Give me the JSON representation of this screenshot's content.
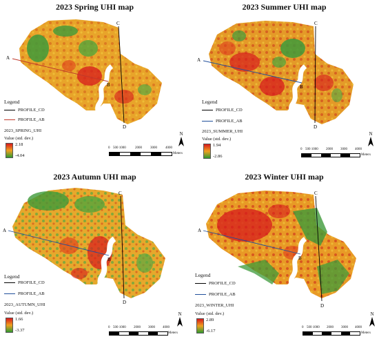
{
  "panels": [
    {
      "id": "spring",
      "title": "2023 Spring UHI map",
      "legend_heading": "Legend",
      "profile_rows": [
        {
          "label": "PROFILE_CD",
          "color": "#000000"
        },
        {
          "label": "PROFILE_AB",
          "color": "#c0392b"
        }
      ],
      "layer_name": "2023_SPRING_UHI",
      "value_label": "Value  (std. dev.)",
      "ramp_max": "2.18",
      "ramp_min": "-4.04",
      "scale_ticks": [
        "0",
        "500 1000",
        "2000",
        "3000",
        "4000"
      ],
      "scale_units": "Meters",
      "north": "N",
      "points": [
        "A",
        "B",
        "C",
        "D"
      ]
    },
    {
      "id": "summer",
      "title": "2023 Summer UHI map",
      "legend_heading": "Legend",
      "profile_rows": [
        {
          "label": "PROFILE_CD",
          "color": "#000000"
        },
        {
          "label": "PROFILE_AB",
          "color": "#1f4e9a"
        }
      ],
      "layer_name": "2023_SUMMER_UHI",
      "value_label": "Value  (std. dev.)",
      "ramp_max": "1.94",
      "ramp_min": "-2.86",
      "scale_ticks": [
        "0",
        "500 1000",
        "2000",
        "3000",
        "4000"
      ],
      "scale_units": "Meters",
      "north": "N",
      "points": [
        "A",
        "B",
        "C",
        "D"
      ]
    },
    {
      "id": "autumn",
      "title": "2023 Autumn UHI map",
      "legend_heading": "Legend",
      "profile_rows": [
        {
          "label": "PROFILE_CD",
          "color": "#000000"
        },
        {
          "label": "PROFILE_AB",
          "color": "#1f4e9a"
        }
      ],
      "layer_name": "2023_AUTUMN_UHI",
      "value_label": "Value  (std. dev.)",
      "ramp_max": "1.66",
      "ramp_min": "-3.37",
      "scale_ticks": [
        "0",
        "500 1000",
        "2000",
        "3000",
        "4000"
      ],
      "scale_units": "Meters",
      "north": "N",
      "points": [
        "A",
        "B",
        "C",
        "D"
      ]
    },
    {
      "id": "winter",
      "title": "2023 Winter UHI map",
      "legend_heading": "Legend",
      "profile_rows": [
        {
          "label": "PROFILE_CD",
          "color": "#000000"
        },
        {
          "label": "PROFILE_AB",
          "color": "#1f4e9a"
        }
      ],
      "layer_name": "2023_WINTER_UHI",
      "value_label": "Value  (std. dev.)",
      "ramp_max": "2.89",
      "ramp_min": "-6.17",
      "scale_ticks": [
        "0",
        "500 1000",
        "2000",
        "3000",
        "4000"
      ],
      "scale_units": "Meters",
      "north": "N",
      "points": [
        "A",
        "B",
        "C",
        "D"
      ]
    }
  ],
  "colors": {
    "ramp_high": "#d7191c",
    "ramp_mid": "#f0a020",
    "ramp_low": "#2e9a30",
    "river": "#ffffff"
  }
}
